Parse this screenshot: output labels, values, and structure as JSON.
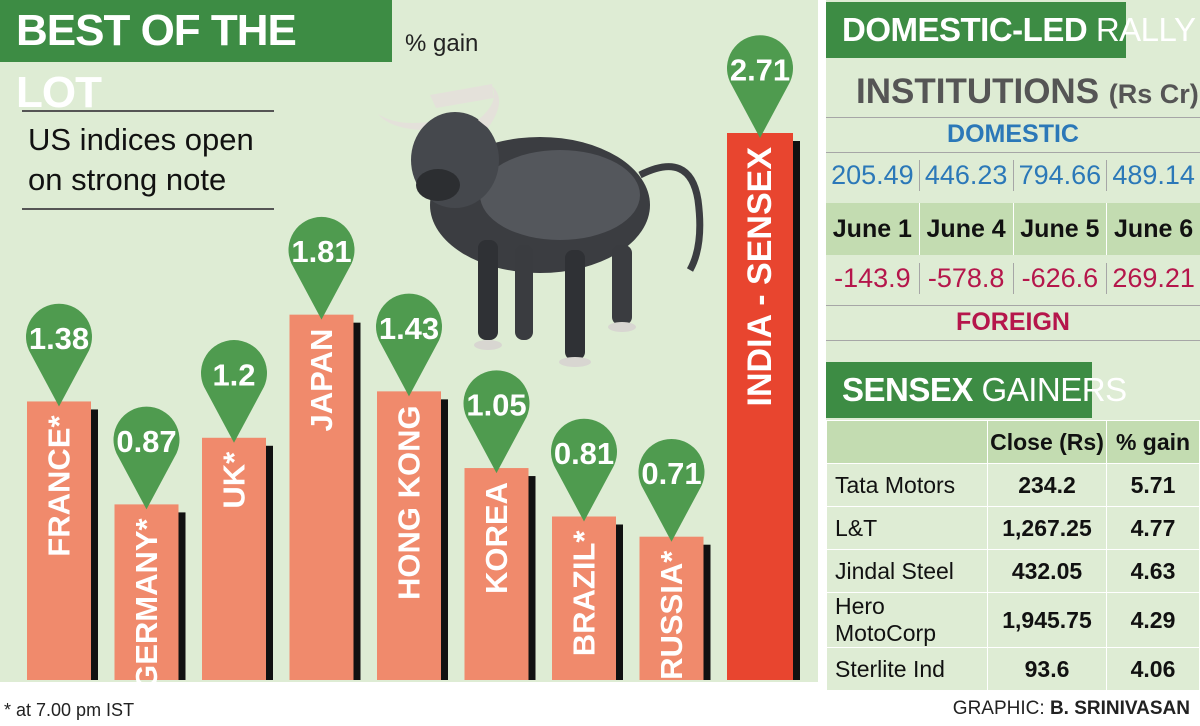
{
  "header": {
    "title": "BEST OF THE LOT",
    "unit": "% gain"
  },
  "subtitle": "US indices open on strong note",
  "footnote": "* at 7.00 pm IST",
  "credit": {
    "label": "GRAPHIC:",
    "name": "B. SRINIVASAN"
  },
  "colors": {
    "bar": "#f08a6c",
    "highlight_bar": "#e8452f",
    "pin": "#4f9b4f",
    "panel_bg": "#deecd4",
    "header_bg": "#3d8c44",
    "domestic": "#2b78b8",
    "foreign": "#b5164b"
  },
  "chart_data": {
    "type": "bar",
    "title": "BEST OF THE LOT",
    "ylabel": "% gain",
    "categories": [
      "FRANCE*",
      "GERMANY*",
      "UK*",
      "JAPAN",
      "HONG KONG",
      "KOREA",
      "BRAZIL*",
      "RUSSIA*",
      "INDIA - SENSEX"
    ],
    "values": [
      1.38,
      0.87,
      1.2,
      1.81,
      1.43,
      1.05,
      0.81,
      0.71,
      2.71
    ],
    "value_labels": [
      "1.38",
      "0.87",
      "1.2",
      "1.81",
      "1.43",
      "1.05",
      "0.81",
      "0.71",
      "2.71"
    ],
    "highlight": "INDIA - SENSEX",
    "ylim": [
      0,
      3
    ],
    "grid": false,
    "legend": "none"
  },
  "rally": {
    "title_bold": "DOMESTIC-LED",
    "title_rest": " RALLY",
    "institutions_title": "INSTITUTIONS",
    "institutions_unit": "(Rs Cr)",
    "domestic_label": "DOMESTIC",
    "foreign_label": "FOREIGN",
    "dates": [
      "June 1",
      "June 4",
      "June 5",
      "June 6"
    ],
    "domestic": [
      "205.49",
      "446.23",
      "794.66",
      "489.14"
    ],
    "foreign": [
      "-143.9",
      "-578.8",
      "-626.6",
      "269.21"
    ]
  },
  "gainers": {
    "title_bold": "SENSEX",
    "title_rest": " GAINERS",
    "headers": [
      "",
      "Close (Rs)",
      "% gain"
    ],
    "rows": [
      {
        "name": "Tata Motors",
        "close": "234.2",
        "gain": "5.71"
      },
      {
        "name": "L&T",
        "close": "1,267.25",
        "gain": "4.77"
      },
      {
        "name": "Jindal Steel",
        "close": "432.05",
        "gain": "4.63"
      },
      {
        "name": "Hero MotoCorp",
        "close": "1,945.75",
        "gain": "4.29"
      },
      {
        "name": "Sterlite Ind",
        "close": "93.6",
        "gain": "4.06"
      }
    ]
  }
}
